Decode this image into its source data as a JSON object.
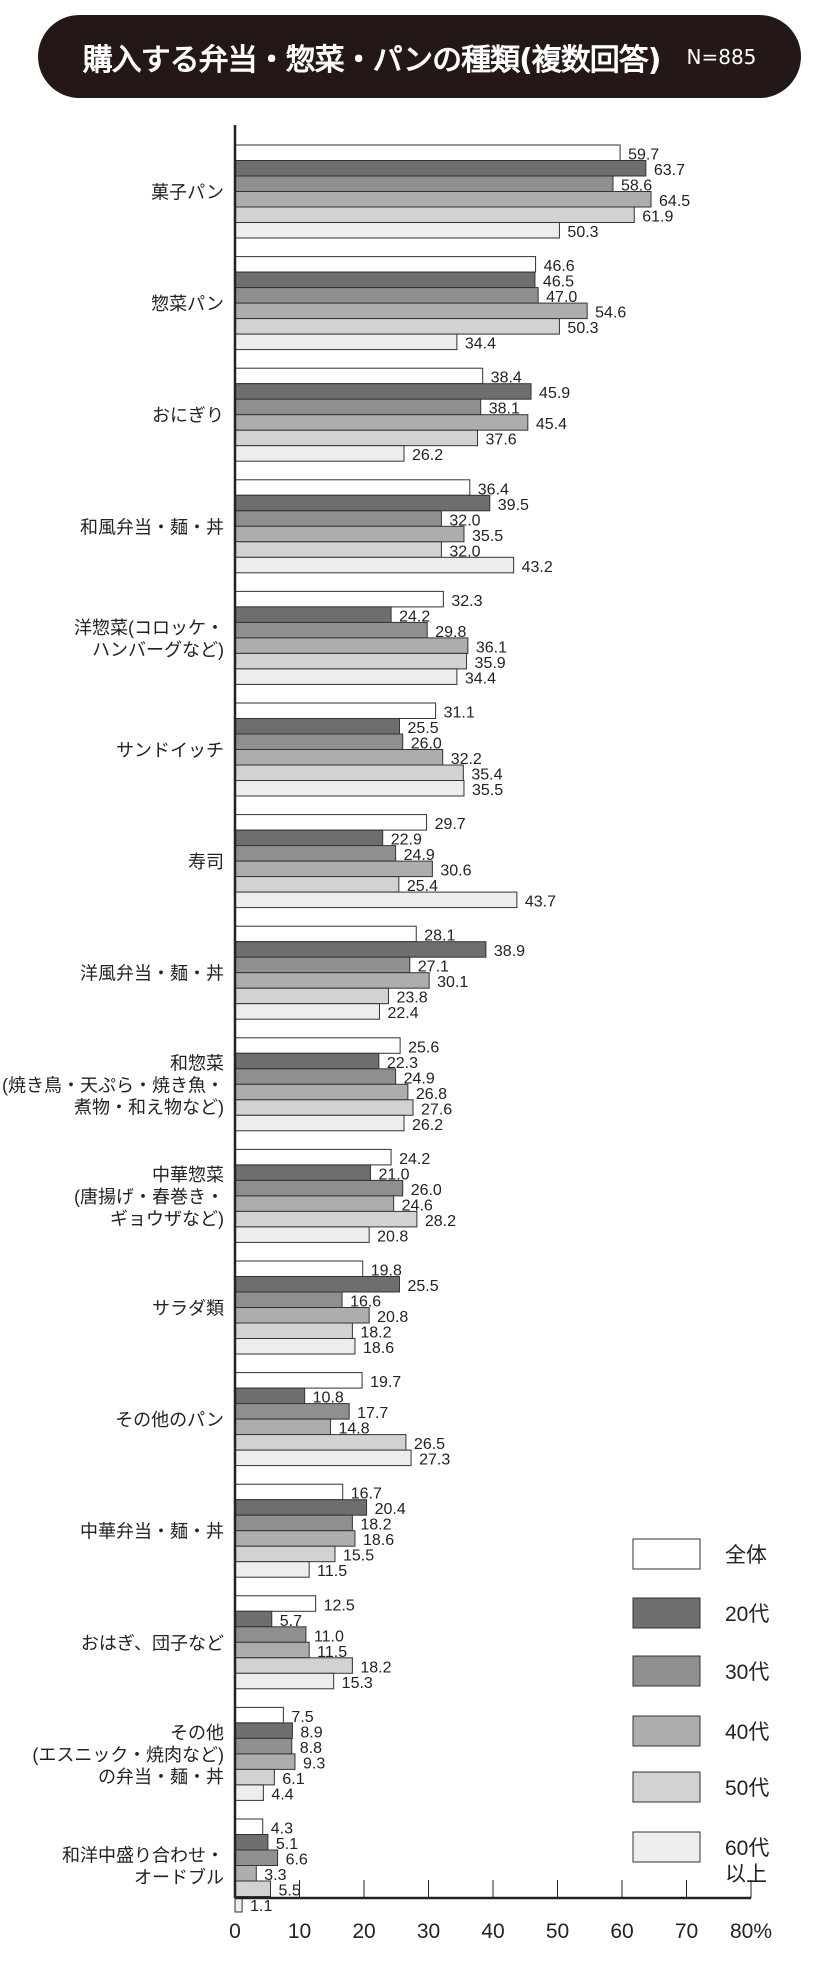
{
  "chart_data": {
    "type": "bar",
    "orientation": "horizontal",
    "title": "購入する弁当・惣菜・パンの種類(複数回答)",
    "sample_size": "N=885",
    "xlim": [
      0,
      80
    ],
    "x_ticks": [
      "0",
      "10",
      "20",
      "30",
      "40",
      "50",
      "60",
      "70",
      "80%"
    ],
    "legend_position": "bottom-right",
    "categories": [
      [
        "菓子パン"
      ],
      [
        "惣菜パン"
      ],
      [
        "おにぎり"
      ],
      [
        "和風弁当・麺・丼"
      ],
      [
        "洋惣菜(コロッケ・",
        "ハンバーグなど)"
      ],
      [
        "サンドイッチ"
      ],
      [
        "寿司"
      ],
      [
        "洋風弁当・麺・丼"
      ],
      [
        "和惣菜",
        "(焼き鳥・天ぷら・焼き魚・",
        "煮物・和え物など)"
      ],
      [
        "中華惣菜",
        "(唐揚げ・春巻き・",
        "ギョウザなど)"
      ],
      [
        "サラダ類"
      ],
      [
        "その他のパン"
      ],
      [
        "中華弁当・麺・丼"
      ],
      [
        "おはぎ、団子など"
      ],
      [
        "その他",
        "(エスニック・焼肉など)",
        "の弁当・麺・丼"
      ],
      [
        "和洋中盛り合わせ・",
        "オードブル"
      ]
    ],
    "series": [
      {
        "name": "全体",
        "color": "#ffffff",
        "values": [
          59.7,
          46.6,
          38.4,
          36.4,
          32.3,
          31.1,
          29.7,
          28.1,
          25.6,
          24.2,
          19.8,
          19.7,
          16.7,
          12.5,
          7.5,
          4.3
        ]
      },
      {
        "name": "20代",
        "color": "#6e6e6e",
        "values": [
          63.7,
          46.5,
          45.9,
          39.5,
          24.2,
          25.5,
          22.9,
          38.9,
          22.3,
          21.0,
          25.5,
          10.8,
          20.4,
          5.7,
          8.9,
          5.1
        ]
      },
      {
        "name": "30代",
        "color": "#8f8f8f",
        "values": [
          58.6,
          47.0,
          38.1,
          32.0,
          29.8,
          26.0,
          24.9,
          27.1,
          24.9,
          26.0,
          16.6,
          17.7,
          18.2,
          11.0,
          8.8,
          6.6
        ]
      },
      {
        "name": "40代",
        "color": "#adadad",
        "values": [
          64.5,
          54.6,
          45.4,
          35.5,
          36.1,
          32.2,
          30.6,
          30.1,
          26.8,
          24.6,
          20.8,
          14.8,
          18.6,
          11.5,
          9.3,
          3.3
        ]
      },
      {
        "name": "50代",
        "color": "#d2d2d2",
        "values": [
          61.9,
          50.3,
          37.6,
          32.0,
          35.9,
          35.4,
          25.4,
          23.8,
          27.6,
          28.2,
          18.2,
          26.5,
          15.5,
          18.2,
          6.1,
          5.5
        ]
      },
      {
        "name": "60代以上",
        "color": "#ededed",
        "values": [
          50.3,
          34.4,
          26.2,
          43.2,
          34.4,
          35.5,
          43.7,
          22.4,
          26.2,
          20.8,
          18.6,
          27.3,
          11.5,
          15.3,
          4.4,
          1.1
        ]
      }
    ],
    "legend_labels": [
      [
        "全体"
      ],
      [
        "20代"
      ],
      [
        "30代"
      ],
      [
        "40代"
      ],
      [
        "50代"
      ],
      [
        "60代",
        "以上"
      ]
    ]
  }
}
